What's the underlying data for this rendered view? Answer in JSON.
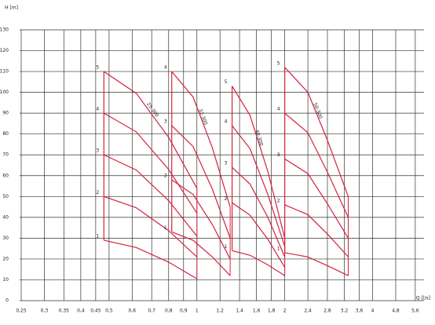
{
  "chart_data": {
    "type": "pump-curves",
    "y_label": "H [m]",
    "x_label": "Q [l/s]",
    "log_x": true,
    "grid": true,
    "color": "#d4213d",
    "xlim": [
      0.25,
      6
    ],
    "ylim": [
      0,
      130
    ],
    "xticks": [
      {
        "value": 0.25,
        "label": "0,25"
      },
      {
        "value": 0.3,
        "label": "0,3"
      },
      {
        "value": 0.35,
        "label": "0,35"
      },
      {
        "value": 0.4,
        "label": "0,4"
      },
      {
        "value": 0.45,
        "label": "0,45"
      },
      {
        "value": 0.5,
        "label": "0,5"
      },
      {
        "value": 0.6,
        "label": "0,6"
      },
      {
        "value": 0.7,
        "label": "0,7"
      },
      {
        "value": 0.8,
        "label": "0,8"
      },
      {
        "value": 0.9,
        "label": "0,9"
      },
      1,
      {
        "value": 1.2,
        "label": "1,2"
      },
      {
        "value": 1.4,
        "label": "1,4"
      },
      {
        "value": 1.6,
        "label": "1,6"
      },
      {
        "value": 1.8,
        "label": "1,8"
      },
      2,
      {
        "value": 2.4,
        "label": "2,4"
      },
      {
        "value": 2.8,
        "label": "2,8"
      },
      {
        "value": 3.2,
        "label": "3,2"
      },
      {
        "value": 3.6,
        "label": "3,6"
      },
      4,
      {
        "value": 4.8,
        "label": "4,8"
      },
      {
        "value": 5.6,
        "label": "5,6"
      }
    ],
    "yticks": [
      0,
      10,
      20,
      30,
      40,
      50,
      60,
      70,
      80,
      90,
      100,
      110,
      120,
      130
    ],
    "families": [
      {
        "name": "25-300",
        "curves": [
          {
            "label": "5",
            "x": [
              0.48,
              0.62,
              0.8,
              1.0
            ],
            "values": [
              110,
              99.5,
              78.4,
              54
            ]
          },
          {
            "label": "4",
            "x": [
              0.48,
              0.62,
              0.8,
              1.0
            ],
            "values": [
              90,
              81,
              63,
              42
            ]
          },
          {
            "label": "3",
            "x": [
              0.48,
              0.62,
              0.8,
              1.0
            ],
            "values": [
              70,
              62.7,
              48,
              31
            ]
          },
          {
            "label": "2",
            "x": [
              0.48,
              0.62,
              0.8,
              1.0
            ],
            "values": [
              50,
              44.6,
              33.6,
              21
            ]
          },
          {
            "label": "1",
            "x": [
              0.48,
              0.62,
              0.8,
              1.0
            ],
            "values": [
              29,
              25.5,
              18.5,
              10.5
            ]
          }
        ]
      },
      {
        "name": "32-300",
        "curves": [
          {
            "label": "4",
            "x": [
              0.82,
              0.97,
              1.13,
              1.3
            ],
            "values": [
              110,
              97.8,
              73.3,
              45
            ]
          },
          {
            "label": "3",
            "x": [
              0.82,
              0.97,
              1.13,
              1.3
            ],
            "values": [
              84,
              74,
              53.5,
              30
            ]
          },
          {
            "label": "2",
            "x": [
              0.82,
              0.97,
              1.13,
              1.3
            ],
            "values": [
              58,
              51,
              36.5,
              20
            ]
          },
          {
            "label": "1",
            "x": [
              0.82,
              0.97,
              1.13,
              1.3
            ],
            "values": [
              33,
              29,
              21,
              12
            ]
          }
        ]
      },
      {
        "name": "40-300",
        "curves": [
          {
            "label": "5",
            "x": [
              1.32,
              1.52,
              1.75,
              2.0
            ],
            "values": [
              103,
              89,
              62,
              30
            ]
          },
          {
            "label": "4",
            "x": [
              1.32,
              1.52,
              1.75,
              2.0
            ],
            "values": [
              84,
              73,
              51,
              26
            ]
          },
          {
            "label": "3",
            "x": [
              1.32,
              1.52,
              1.75,
              2.0
            ],
            "values": [
              64,
              56,
              40,
              21
            ]
          },
          {
            "label": "2",
            "x": [
              1.32,
              1.52,
              1.75,
              2.0
            ],
            "values": [
              47,
              41,
              29.5,
              16
            ]
          },
          {
            "label": "1",
            "x": [
              1.32,
              1.52,
              1.75,
              2.0
            ],
            "values": [
              24,
              21.8,
              17.2,
              12
            ]
          }
        ]
      },
      {
        "name": "50-300",
        "curves": [
          {
            "label": "5",
            "x": [
              2.0,
              2.4,
              2.8,
              3.3
            ],
            "values": [
              112,
              100,
              77,
              50
            ]
          },
          {
            "label": "4",
            "x": [
              2.0,
              2.4,
              2.8,
              3.3
            ],
            "values": [
              90,
              80.6,
              61.7,
              40
            ]
          },
          {
            "label": "3",
            "x": [
              2.0,
              2.4,
              2.8,
              3.3
            ],
            "values": [
              68,
              61,
              46.5,
              30
            ]
          },
          {
            "label": "2",
            "x": [
              2.0,
              2.4,
              2.8,
              3.3
            ],
            "values": [
              46,
              41.3,
              32,
              21
            ]
          },
          {
            "label": "1",
            "x": [
              2.0,
              2.4,
              2.8,
              3.3
            ],
            "values": [
              23,
              21,
              16.8,
              12
            ]
          }
        ]
      }
    ]
  }
}
